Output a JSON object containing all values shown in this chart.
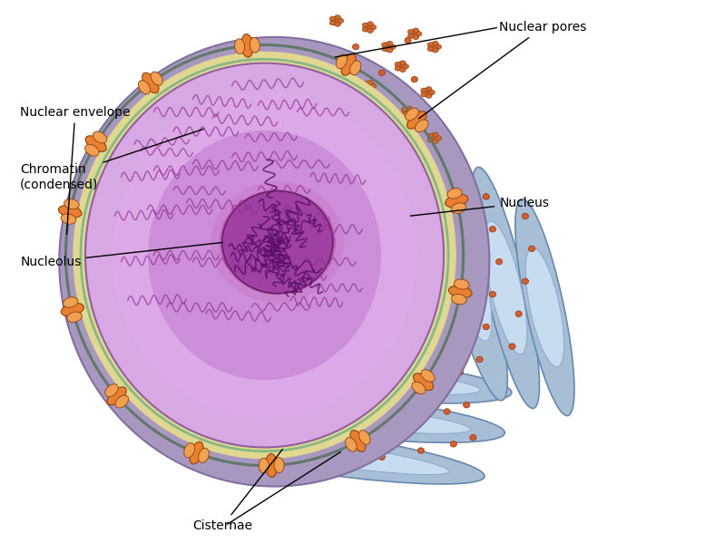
{
  "background_color": "#ffffff",
  "labels": {
    "nuclear_envelope": "Nuclear envelope",
    "chromatin": "Chromatin\n(condensed)",
    "nucleolus": "Nucleolus",
    "nuclear_pores": "Nuclear pores",
    "nucleus": "Nucleus",
    "cisternae": "Cisternae"
  },
  "colors": {
    "outer_nuc_fill": "#A898C0",
    "outer_nuc_edge": "#8070A0",
    "inner_nuc_fill": "#D4A8D8",
    "inner_nuc_edge": "#9060A0",
    "nucleolus_fill": "#A040A0",
    "nucleolus_edge": "#6B2060",
    "nucleolus_inner": "#882288",
    "env_outer_line": "#607868",
    "env_cream": "#E0D890",
    "env_inner_line": "#88B888",
    "er_fill": "#A8BED4",
    "er_edge": "#6888B0",
    "er_lumen": "#C8DCF0",
    "er_lumen_edge": "#88AACC",
    "pore_main": "#E88030",
    "pore_light": "#F0A050",
    "pore_edge": "#904010",
    "chromatin_dark": "#903090",
    "chromatin_light": "#B060B8",
    "ribosome_color": "#D06830",
    "ribosome_edge": "#804010",
    "dot_color": "#D06030",
    "dot_edge": "#903010"
  },
  "figsize": [
    7.77,
    5.99
  ],
  "dpi": 100
}
